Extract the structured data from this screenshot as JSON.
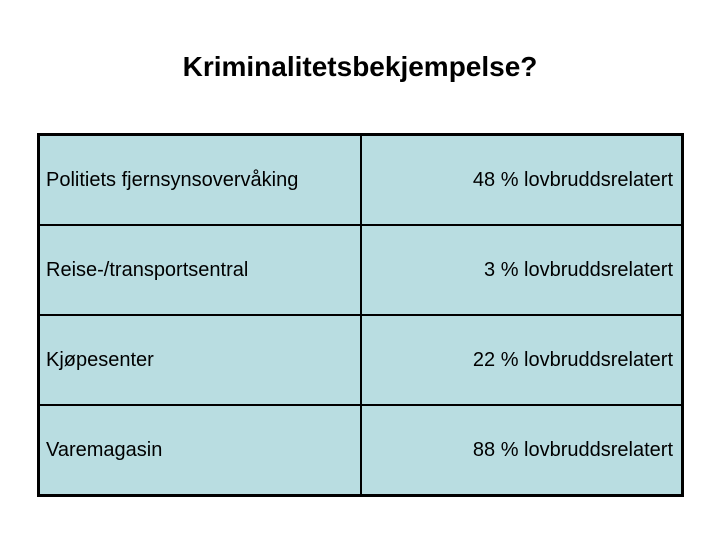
{
  "slide": {
    "title": "Kriminalitetsbekjempelse?",
    "table": {
      "rows": [
        {
          "label": "Politiets fjernsynsovervåking",
          "value": "48 % lovbruddsrelatert"
        },
        {
          "label": "Reise-/transportsentral",
          "value": "3 % lovbruddsrelatert"
        },
        {
          "label": "Kjøpesenter",
          "value": "22 % lovbruddsrelatert"
        },
        {
          "label": "Varemagasin",
          "value": "88 % lovbruddsrelatert"
        }
      ]
    },
    "colors": {
      "slide_background": "#ffffff",
      "cell_background": "#b9dde1",
      "border": "#000000",
      "text": "#000000"
    }
  }
}
